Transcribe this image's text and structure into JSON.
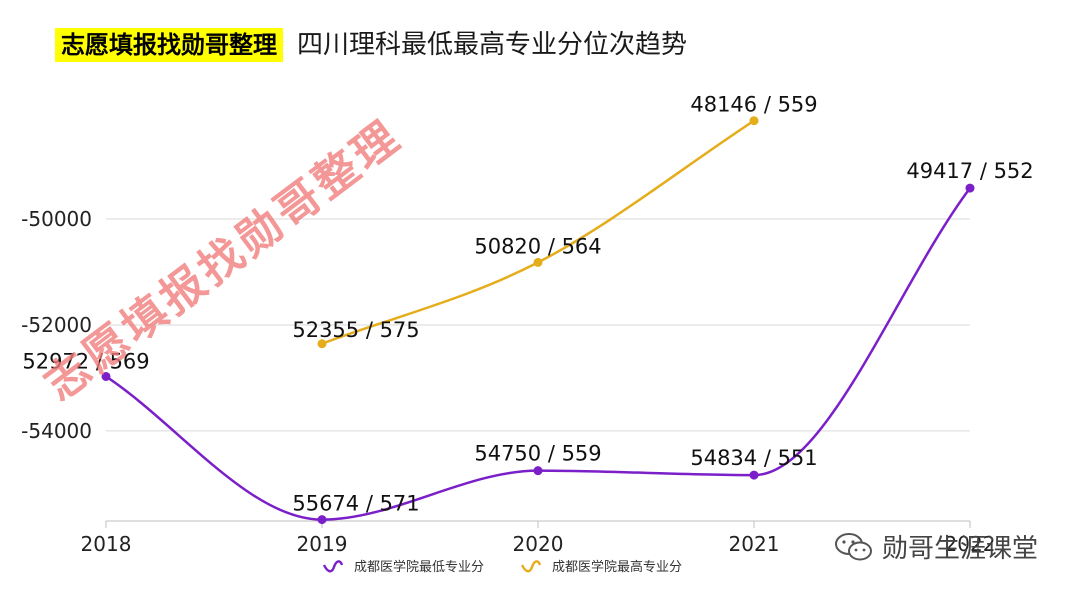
{
  "header": {
    "brand": "志愿填报找勋哥整理",
    "subtitle": "四川理科最低最高专业分位次趋势"
  },
  "watermark": "志愿填报找勋哥整理",
  "wechat_account": "勋哥生涯课堂",
  "colors": {
    "min_series": "#7b1fc9",
    "max_series": "#e5ad1b",
    "brand_highlight": "#ffff00",
    "watermark": "#f07a7a"
  },
  "chart_data": {
    "type": "line",
    "categories": [
      "2018",
      "2019",
      "2020",
      "2021",
      "2022"
    ],
    "y_ticks": [
      "-50000",
      "-52000",
      "-54000"
    ],
    "ylim": [
      -55700,
      -47000
    ],
    "grid": true,
    "legend_position": "bottom",
    "series": [
      {
        "name": "成都医学院最低专业分",
        "color": "#7b1fc9",
        "values": [
          -52972,
          -55674,
          -54750,
          -54834,
          -49417
        ],
        "labels": [
          "52972 / 569",
          "55674 / 571",
          "54750 / 559",
          "54834 / 551",
          "49417 / 552"
        ]
      },
      {
        "name": "成都医学院最高专业分",
        "color": "#e5ad1b",
        "values": [
          null,
          -52355,
          -50820,
          -48146,
          null
        ],
        "labels": [
          "",
          "52355 / 575",
          "50820 / 564",
          "48146 / 559",
          ""
        ]
      }
    ]
  }
}
